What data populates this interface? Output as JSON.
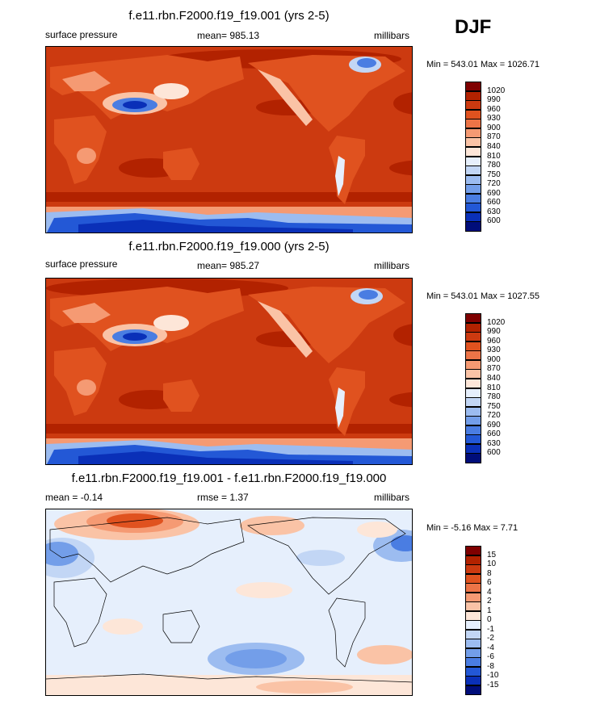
{
  "season": "DJF",
  "panels": [
    {
      "title": "f.e11.rbn.F2000.f19_f19.001 (yrs 2-5)",
      "left_label": "surface pressure",
      "center_label": "mean= 985.13",
      "right_label": "millibars",
      "minmax": "Min = 543.01 Max = 1026.71"
    },
    {
      "title": "f.e11.rbn.F2000.f19_f19.000 (yrs 2-5)",
      "left_label": "surface pressure",
      "center_label": "mean= 985.27",
      "right_label": "millibars",
      "minmax": "Min = 543.01 Max = 1027.55"
    },
    {
      "title": "f.e11.rbn.F2000.f19_f19.001 - f.e11.rbn.F2000.f19_f19.000",
      "left_label": "mean =  -0.14",
      "center_label": "rmse =   1.37",
      "right_label": "millibars",
      "minmax": "Min =  -5.16 Max =   7.71"
    }
  ],
  "chart_data": [
    {
      "type": "heatmap",
      "title": "f.e11.rbn.F2000.f19_f19.001 (yrs 2-5)",
      "variable": "surface pressure",
      "units": "millibars",
      "mean": 985.13,
      "min": 543.01,
      "max": 1026.71,
      "colorbar_levels": [
        "1020",
        "990",
        "960",
        "930",
        "900",
        "870",
        "840",
        "810",
        "780",
        "750",
        "720",
        "690",
        "660",
        "630",
        "600"
      ],
      "colorbar_colors": [
        "#7f0000",
        "#b22200",
        "#cc3a10",
        "#e0521f",
        "#ec7447",
        "#f59a73",
        "#fac3a6",
        "#fde6d8",
        "#e6effc",
        "#c2d6f5",
        "#9cbcf0",
        "#739ee9",
        "#4a7de2",
        "#2358d6",
        "#0a30b8",
        "#000d7a"
      ]
    },
    {
      "type": "heatmap",
      "title": "f.e11.rbn.F2000.f19_f19.000 (yrs 2-5)",
      "variable": "surface pressure",
      "units": "millibars",
      "mean": 985.27,
      "min": 543.01,
      "max": 1027.55,
      "colorbar_levels": [
        "1020",
        "990",
        "960",
        "930",
        "900",
        "870",
        "840",
        "810",
        "780",
        "750",
        "720",
        "690",
        "660",
        "630",
        "600"
      ],
      "colorbar_colors": [
        "#7f0000",
        "#b22200",
        "#cc3a10",
        "#e0521f",
        "#ec7447",
        "#f59a73",
        "#fac3a6",
        "#fde6d8",
        "#e6effc",
        "#c2d6f5",
        "#9cbcf0",
        "#739ee9",
        "#4a7de2",
        "#2358d6",
        "#0a30b8",
        "#000d7a"
      ]
    },
    {
      "type": "heatmap",
      "title": "f.e11.rbn.F2000.f19_f19.001 - f.e11.rbn.F2000.f19_f19.000",
      "units": "millibars",
      "mean": -0.14,
      "rmse": 1.37,
      "min": -5.16,
      "max": 7.71,
      "colorbar_levels": [
        "15",
        "10",
        "8",
        "6",
        "4",
        "2",
        "1",
        "0",
        "-1",
        "-2",
        "-4",
        "-6",
        "-8",
        "-10",
        "-15"
      ],
      "colorbar_colors": [
        "#7f0000",
        "#b22200",
        "#cc3a10",
        "#e0521f",
        "#ec7447",
        "#f59a73",
        "#fac3a6",
        "#fde6d8",
        "#e6effc",
        "#c2d6f5",
        "#9cbcf0",
        "#739ee9",
        "#4a7de2",
        "#2358d6",
        "#0a30b8",
        "#000d7a"
      ]
    }
  ]
}
